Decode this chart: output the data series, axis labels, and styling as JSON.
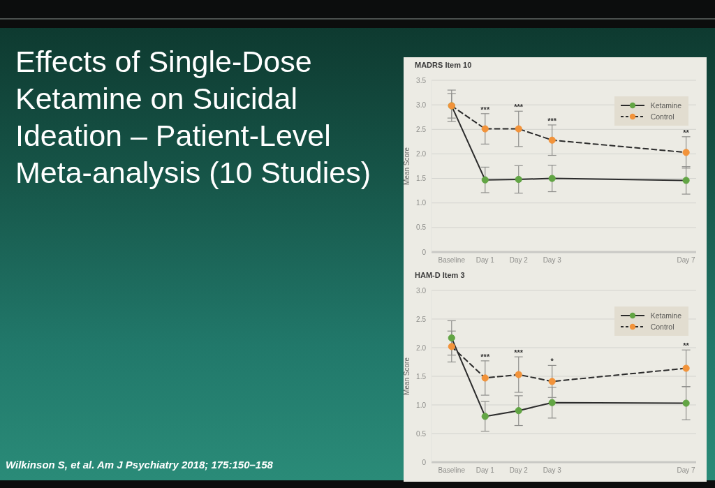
{
  "chart_data": [
    {
      "type": "other",
      "title": "Effects of Single-Dose Ketamine on Suicidal Ideation – Patient-Level Meta-analysis (10 Studies)",
      "annotations": [
        "Wilkinson S, et al. Am J Psychiatry 2018; 175:150–158"
      ]
    },
    {
      "type": "line",
      "title": "MADRS Item 10",
      "ylabel": "Mean Score",
      "categories": [
        "Baseline",
        "Day 1",
        "Day 2",
        "Day 3",
        null,
        null,
        null,
        "Day 7"
      ],
      "ylim": [
        0,
        3.5
      ],
      "yticks": [
        0,
        0.5,
        {
          "value": 1,
          "label": "1.0"
        },
        1.5,
        {
          "value": 2,
          "label": "2.0"
        },
        2.5,
        {
          "value": 3,
          "label": "3.0"
        },
        3.5
      ],
      "series": [
        {
          "name": "Ketamine",
          "color": "#62a544",
          "values": [
            2.98,
            1.47,
            1.48,
            1.5,
            null,
            null,
            null,
            1.46
          ],
          "errors": [
            0.32,
            0.26,
            0.28,
            0.27,
            null,
            null,
            null,
            0.28
          ],
          "line_style": "solid"
        },
        {
          "name": "Control",
          "color": "#f2933a",
          "values": [
            2.98,
            2.51,
            2.51,
            2.28,
            null,
            null,
            null,
            2.03
          ],
          "errors": [
            0.25,
            0.31,
            0.36,
            0.31,
            null,
            null,
            null,
            0.32
          ],
          "line_style": "dashed"
        }
      ],
      "marker": "circle",
      "grid": "y",
      "legend": "top right",
      "annotations": [
        {
          "text": "***",
          "x": "Day 1",
          "y": 2.51
        },
        {
          "text": "***",
          "x": "Day 2",
          "y": 2.51
        },
        {
          "text": "***",
          "x": "Day 3",
          "y": 2.28
        },
        {
          "text": "**",
          "x": "Day 7",
          "y": 2.03
        }
      ]
    },
    {
      "type": "line",
      "title": "HAM-D Item 3",
      "ylabel": "Mean Score",
      "categories": [
        "Baseline",
        "Day 1",
        "Day 2",
        "Day 3",
        null,
        null,
        null,
        "Day 7"
      ],
      "ylim": [
        0,
        3
      ],
      "yticks": [
        0,
        0.5,
        {
          "value": 1,
          "label": "1.0"
        },
        1.5,
        {
          "value": 2,
          "label": "2.0"
        },
        2.5,
        {
          "value": 3,
          "label": "3.0"
        }
      ],
      "series": [
        {
          "name": "Ketamine",
          "color": "#62a544",
          "values": [
            2.17,
            0.8,
            0.9,
            1.04,
            null,
            null,
            null,
            1.03
          ],
          "errors": [
            0.3,
            0.26,
            0.26,
            0.27,
            null,
            null,
            null,
            0.29
          ],
          "line_style": "solid"
        },
        {
          "name": "Control",
          "color": "#f2933a",
          "values": [
            2.02,
            1.47,
            1.53,
            1.41,
            null,
            null,
            null,
            1.64
          ],
          "errors": [
            0.27,
            0.3,
            0.31,
            0.28,
            null,
            null,
            null,
            0.32
          ],
          "line_style": "dashed"
        }
      ],
      "marker": "circle",
      "grid": "y",
      "legend": "top right",
      "annotations": [
        {
          "text": "***",
          "x": "Day 1",
          "y": 1.47
        },
        {
          "text": "***",
          "x": "Day 2",
          "y": 1.53
        },
        {
          "text": "*",
          "x": "Day 3",
          "y": 1.41
        },
        {
          "text": "**",
          "x": "Day 7",
          "y": 1.64
        }
      ]
    }
  ]
}
